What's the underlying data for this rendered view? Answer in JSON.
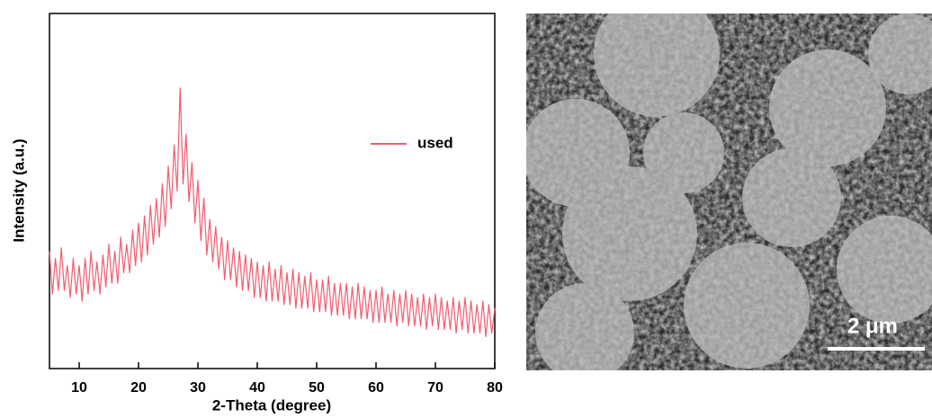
{
  "chart_data": {
    "type": "line",
    "x_label": "2-Theta (degree)",
    "y_label": "Intensity (a.u.)",
    "xlim": [
      5,
      80
    ],
    "ylim": [
      0,
      100
    ],
    "xticks": [
      10,
      20,
      30,
      40,
      50,
      60,
      70,
      80
    ],
    "legend": "upper right",
    "grid": false,
    "series": [
      {
        "name": "used",
        "color": "#f25c6e",
        "x": [
          5,
          5.5,
          6,
          6.5,
          7,
          7.5,
          8,
          8.5,
          9,
          9.5,
          10,
          10.5,
          11,
          11.5,
          12,
          12.5,
          13,
          13.5,
          14,
          14.5,
          15,
          15.5,
          16,
          16.5,
          17,
          17.5,
          18,
          18.5,
          19,
          19.5,
          20,
          20.5,
          21,
          21.5,
          22,
          22.5,
          23,
          23.5,
          24,
          24.5,
          25,
          25.5,
          26,
          26.5,
          27,
          27.5,
          28,
          28.5,
          29,
          29.5,
          30,
          30.5,
          31,
          31.5,
          32,
          32.5,
          33,
          33.5,
          34,
          34.5,
          35,
          35.5,
          36,
          36.5,
          37,
          37.5,
          38,
          38.5,
          39,
          39.5,
          40,
          40.5,
          41,
          41.5,
          42,
          42.5,
          43,
          43.5,
          44,
          44.5,
          45,
          45.5,
          46,
          46.5,
          47,
          47.5,
          48,
          48.5,
          49,
          49.5,
          50,
          50.5,
          51,
          51.5,
          52,
          52.5,
          53,
          53.5,
          54,
          54.5,
          55,
          55.5,
          56,
          56.5,
          57,
          57.5,
          58,
          58.5,
          59,
          59.5,
          60,
          60.5,
          61,
          61.5,
          62,
          62.5,
          63,
          63.5,
          64,
          64.5,
          65,
          65.5,
          66,
          66.5,
          67,
          67.5,
          68,
          68.5,
          69,
          69.5,
          70,
          70.5,
          71,
          71.5,
          72,
          72.5,
          73,
          73.5,
          74,
          74.5,
          75,
          75.5,
          76,
          76.5,
          77,
          77.5,
          78,
          78.5,
          79,
          79.5,
          80
        ],
        "values": [
          33,
          21,
          31,
          22,
          34,
          22,
          29,
          20,
          31,
          21,
          29,
          19,
          31,
          21,
          33,
          22,
          30,
          21,
          32,
          23,
          35,
          24,
          33,
          24,
          37,
          27,
          35,
          27,
          39,
          29,
          41,
          30,
          43,
          32,
          46,
          35,
          48,
          37,
          52,
          40,
          57,
          45,
          63,
          50,
          79,
          52,
          66,
          47,
          58,
          41,
          53,
          36,
          48,
          32,
          42,
          30,
          40,
          28,
          37,
          25,
          36,
          25,
          34,
          23,
          33,
          22,
          32,
          22,
          31,
          20,
          30,
          20,
          29,
          19,
          30,
          19,
          28,
          19,
          29,
          18,
          27,
          18,
          28,
          17,
          27,
          17,
          26,
          17,
          27,
          16,
          25,
          16,
          25,
          16,
          26,
          15,
          24,
          15,
          24,
          15,
          24,
          14,
          23,
          14,
          24,
          14,
          23,
          14,
          22,
          13,
          22,
          13,
          23,
          13,
          21,
          13,
          22,
          12,
          21,
          13,
          22,
          12,
          21,
          12,
          20,
          12,
          21,
          11,
          20,
          12,
          21,
          11,
          20,
          11,
          19,
          11,
          20,
          10,
          19,
          11,
          20,
          10,
          19,
          10,
          18,
          10,
          19,
          9,
          18,
          10,
          17
        ]
      }
    ]
  },
  "image": {
    "scale_bar": "2 μm"
  }
}
